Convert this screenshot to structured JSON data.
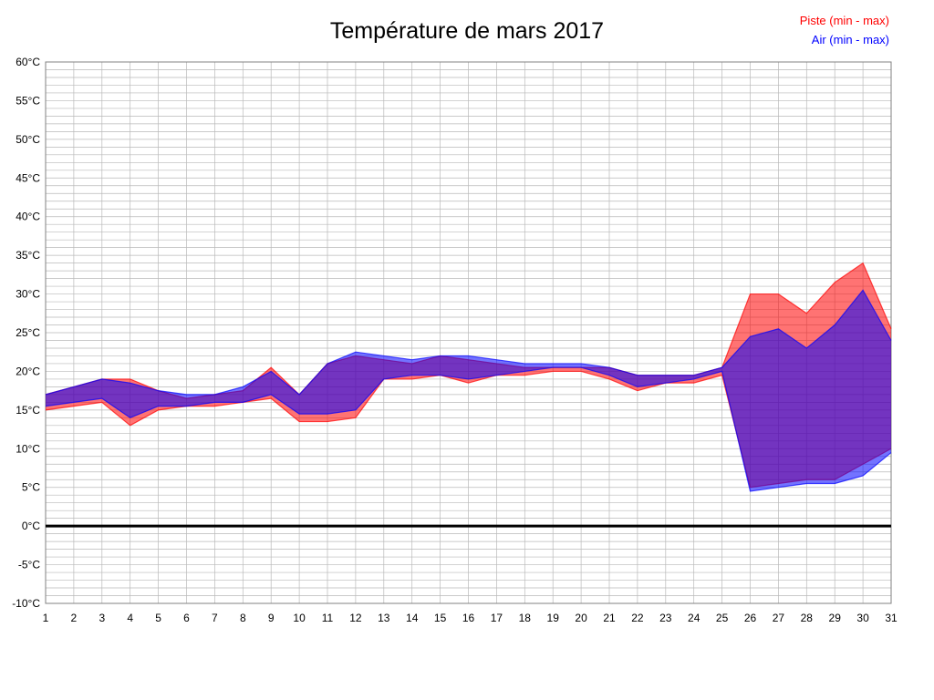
{
  "header": {
    "title": "Température de mars 2017"
  },
  "legend": {
    "piste_label": "Piste (min - max)",
    "air_label": "Air (min - max)"
  },
  "colors": {
    "piste": "#ff0000",
    "air": "#0000ff",
    "grid": "#b9b9b9",
    "border": "#808080",
    "zero_line": "#000000",
    "text": "#000000"
  },
  "chart_data": {
    "type": "area",
    "title": "Température de mars 2017",
    "xlabel": "",
    "ylabel": "",
    "ylim": [
      -10,
      60
    ],
    "yticks": [
      -10,
      -5,
      0,
      5,
      10,
      15,
      20,
      25,
      30,
      35,
      40,
      45,
      50,
      55,
      60
    ],
    "ytick_suffix": "°C",
    "zero_line": 0,
    "grid": true,
    "legend_position": "top-right",
    "x": [
      1,
      2,
      3,
      4,
      5,
      6,
      7,
      8,
      9,
      10,
      11,
      12,
      13,
      14,
      15,
      16,
      17,
      18,
      19,
      20,
      21,
      22,
      23,
      24,
      25,
      26,
      27,
      28,
      29,
      30,
      31
    ],
    "series": [
      {
        "key": "piste",
        "name": "Piste (min - max)",
        "color": "#ff0000",
        "fill_opacity": 0.55,
        "min": [
          15,
          15.5,
          16,
          13,
          15,
          15.5,
          15.5,
          16,
          16.5,
          13.5,
          13.5,
          14,
          19,
          19,
          19.5,
          18.5,
          19.5,
          19.5,
          20,
          20,
          19,
          17.5,
          18.5,
          18.5,
          19.5,
          5,
          5.5,
          6,
          6,
          8,
          10
        ],
        "max": [
          17,
          18,
          19,
          19,
          17.5,
          16.5,
          17,
          17.5,
          20.5,
          17,
          21,
          22,
          21.5,
          21,
          22,
          21.5,
          21,
          20.5,
          20.5,
          20.5,
          20.5,
          19.5,
          19.5,
          19.5,
          20.5,
          30,
          30,
          27.5,
          31.5,
          34,
          25.5
        ]
      },
      {
        "key": "air",
        "name": "Air (min - max)",
        "color": "#0000ff",
        "fill_opacity": 0.55,
        "min": [
          15.5,
          16,
          16.5,
          14,
          15.5,
          15.5,
          16,
          16,
          17,
          14.5,
          14.5,
          15,
          19,
          19.5,
          19.5,
          19,
          19.5,
          20,
          20.5,
          20.5,
          19.5,
          18,
          18.5,
          19,
          20,
          4.5,
          5,
          5.5,
          5.5,
          6.5,
          9.5
        ],
        "max": [
          17,
          18,
          19,
          18.5,
          17.5,
          17,
          17,
          18,
          20,
          17,
          21,
          22.5,
          22,
          21.5,
          22,
          22,
          21.5,
          21,
          21,
          21,
          20.5,
          19.5,
          19.5,
          19.5,
          20.5,
          24.5,
          25.5,
          23,
          26,
          30.5,
          24
        ]
      }
    ]
  }
}
